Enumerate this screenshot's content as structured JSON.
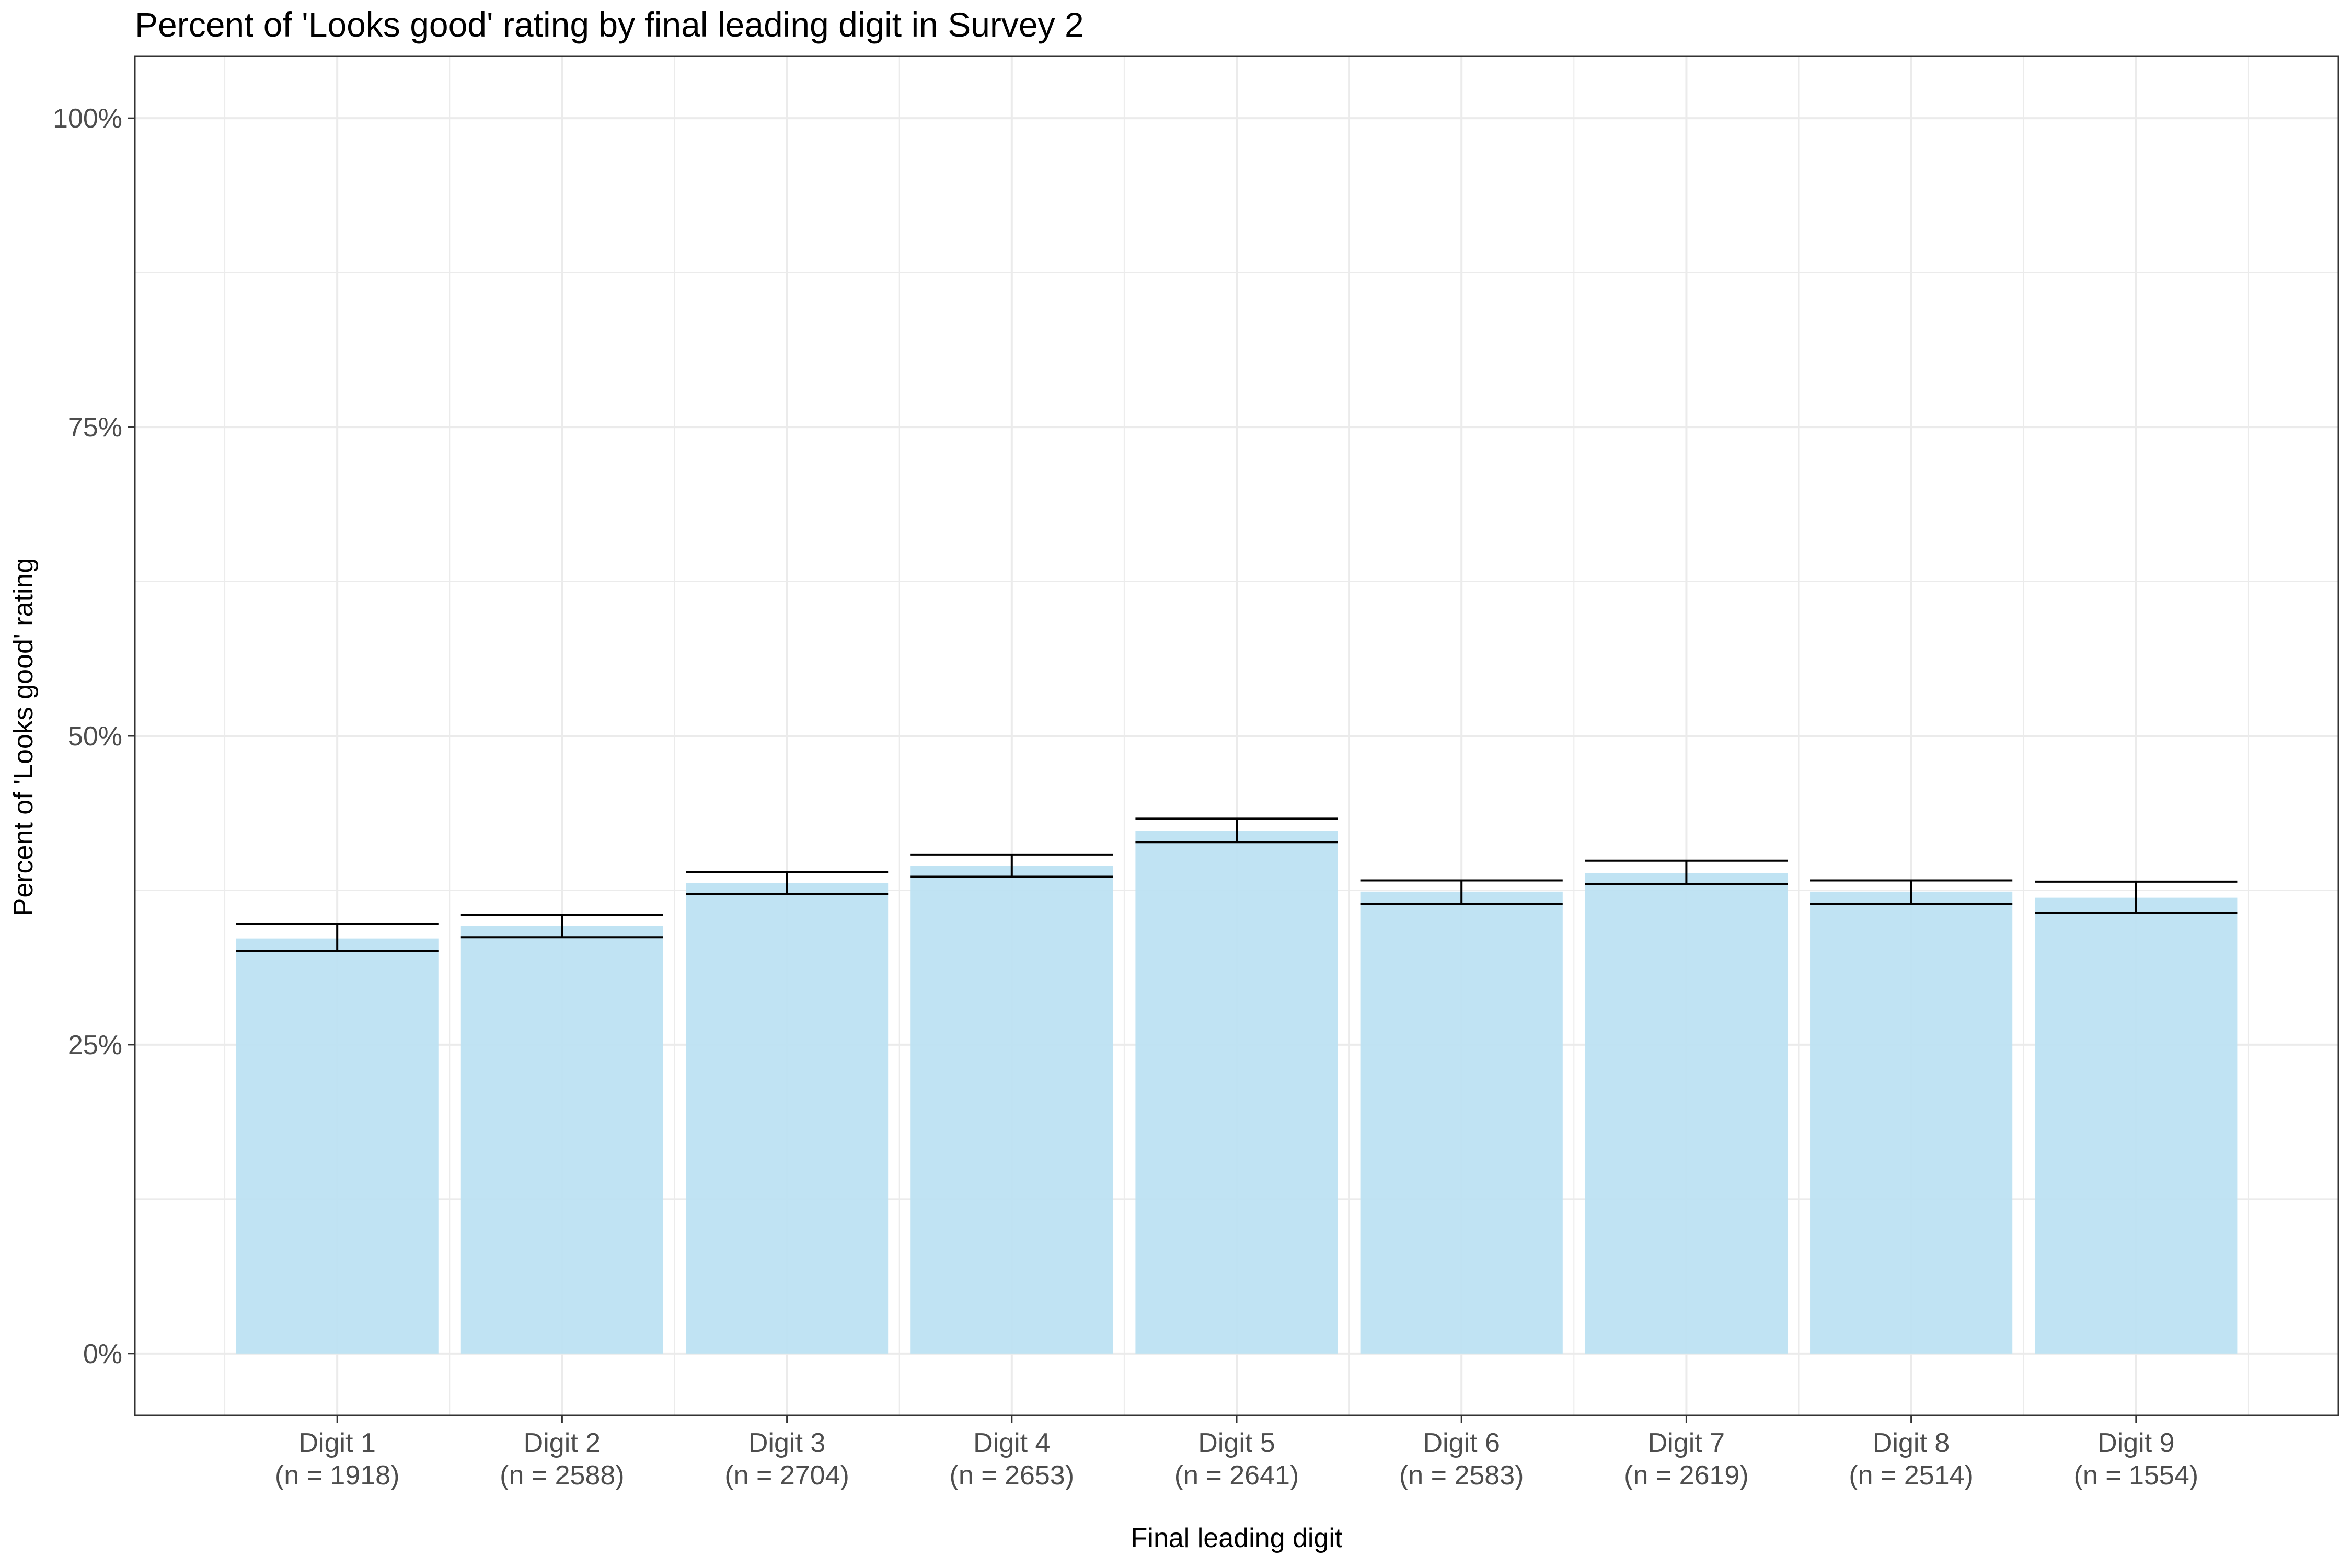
{
  "chart_data": {
    "type": "bar",
    "title": "Percent of 'Looks good' rating by final leading digit in Survey 2",
    "xlabel": "Final leading digit",
    "ylabel": "Percent of 'Looks good' rating",
    "categories": [
      "Digit 1",
      "Digit 2",
      "Digit 3",
      "Digit 4",
      "Digit 5",
      "Digit 6",
      "Digit 7",
      "Digit 8",
      "Digit 9"
    ],
    "sample_sizes": [
      "(n = 1918)",
      "(n = 2588)",
      "(n = 2704)",
      "(n = 2653)",
      "(n = 2641)",
      "(n = 2583)",
      "(n = 2619)",
      "(n = 2514)",
      "(n = 1554)"
    ],
    "values": [
      33.6,
      34.6,
      38.1,
      39.5,
      42.3,
      37.4,
      38.9,
      37.4,
      36.9
    ],
    "error_low": [
      32.6,
      33.7,
      37.2,
      38.6,
      41.4,
      36.4,
      38.0,
      36.4,
      35.7
    ],
    "error_high": [
      34.8,
      35.5,
      39.0,
      40.4,
      43.3,
      38.3,
      39.9,
      38.3,
      38.2
    ],
    "y_ticks": [
      0,
      25,
      50,
      75,
      100
    ],
    "y_tick_labels": [
      "0%",
      "25%",
      "50%",
      "75%",
      "100%"
    ],
    "ylim": [
      -5,
      105
    ],
    "grid": true,
    "bar_color": "#bde2f2",
    "error_bar_color": "#000000",
    "panel_border_color": "#333333",
    "grid_color": "#ebebeb"
  }
}
